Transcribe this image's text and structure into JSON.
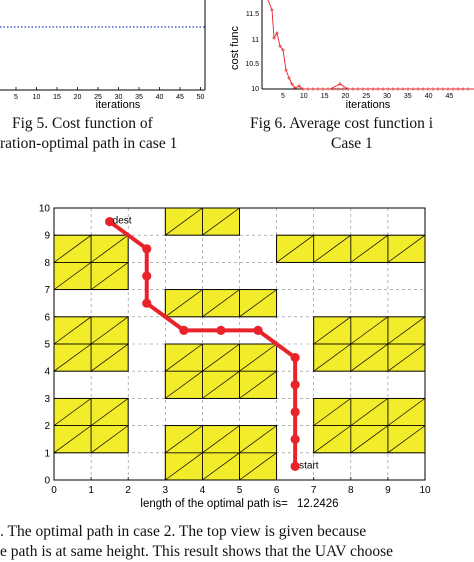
{
  "top_left_panel": {
    "xlabel": "iterations",
    "xticks": [
      "5",
      "10",
      "15",
      "20",
      "25",
      "30",
      "35",
      "40",
      "45",
      "50"
    ]
  },
  "top_right_panel": {
    "ylabel": "cost func",
    "yticks": [
      "11.5",
      "11",
      "10.5",
      "10"
    ],
    "xticks": [
      "5",
      "10",
      "15",
      "20",
      "25",
      "30",
      "35",
      "40",
      "45"
    ],
    "xlabel": "iterations"
  },
  "captions": {
    "fig5_line1": "Fig 5. Cost function of",
    "fig5_line2": "ration-optimal path in case 1",
    "fig6_line1": "Fig 6. Average cost function i",
    "fig6_line2": "Case 1"
  },
  "chart_data": {
    "type": "line",
    "xlim": [
      0,
      10
    ],
    "ylim": [
      0,
      10
    ],
    "xticks": [
      "0",
      "1",
      "2",
      "3",
      "4",
      "5",
      "6",
      "7",
      "8",
      "9",
      "10"
    ],
    "yticks": [
      "0",
      "1",
      "2",
      "3",
      "4",
      "5",
      "6",
      "7",
      "8",
      "9",
      "10"
    ],
    "grid": true,
    "xlabel_prefix": "length of the optimal path is=",
    "path_length": "12.2426",
    "labels": {
      "dest": "dest",
      "start": "start"
    },
    "colors": {
      "path": "#e8232a",
      "obstacle": "#f2ec2a",
      "grid": "#888888"
    },
    "obstacles": [
      {
        "x": [
          3,
          5
        ],
        "y": [
          9,
          10
        ]
      },
      {
        "x": [
          0,
          2
        ],
        "y": [
          7,
          9
        ]
      },
      {
        "x": [
          6,
          10
        ],
        "y": [
          8,
          9
        ]
      },
      {
        "x": [
          3,
          6
        ],
        "y": [
          6,
          7
        ]
      },
      {
        "x": [
          0,
          2
        ],
        "y": [
          4,
          6
        ]
      },
      {
        "x": [
          3,
          6
        ],
        "y": [
          3,
          5
        ]
      },
      {
        "x": [
          7,
          10
        ],
        "y": [
          4,
          6
        ]
      },
      {
        "x": [
          0,
          2
        ],
        "y": [
          1,
          3
        ]
      },
      {
        "x": [
          3,
          6
        ],
        "y": [
          0,
          2
        ]
      },
      {
        "x": [
          7,
          10
        ],
        "y": [
          1,
          3
        ]
      }
    ],
    "path": [
      {
        "x": 1.5,
        "y": 9.5
      },
      {
        "x": 2.5,
        "y": 8.5
      },
      {
        "x": 2.5,
        "y": 7.5
      },
      {
        "x": 2.5,
        "y": 6.5
      },
      {
        "x": 3.5,
        "y": 5.5
      },
      {
        "x": 4.5,
        "y": 5.5
      },
      {
        "x": 5.5,
        "y": 5.5
      },
      {
        "x": 6.5,
        "y": 4.5
      },
      {
        "x": 6.5,
        "y": 3.5
      },
      {
        "x": 6.5,
        "y": 2.5
      },
      {
        "x": 6.5,
        "y": 1.5
      },
      {
        "x": 6.5,
        "y": 0.5
      }
    ]
  },
  "bottom_caption": {
    "line1": ". The optimal path in case 2. The top view is given because",
    "line2": "e path is at same height. This result shows that the UAV choose"
  }
}
